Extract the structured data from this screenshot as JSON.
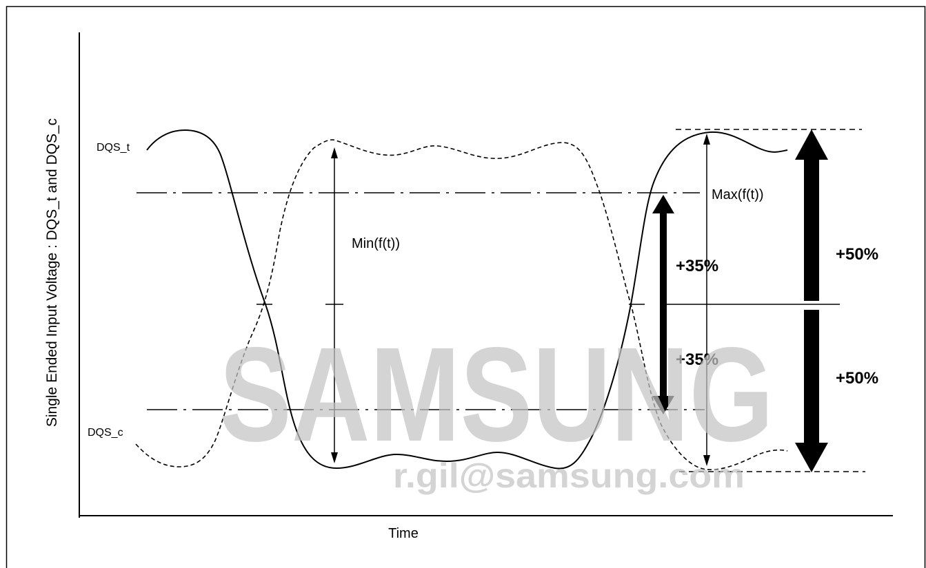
{
  "diagram": {
    "y_axis_label": "Single Ended Input Voltage : DQS_t and DQS_c",
    "x_axis_label": "Time",
    "signals": {
      "dqs_t": "DQS_t",
      "dqs_c": "DQS_c"
    },
    "annotations": {
      "min": "Min(f(t))",
      "max": "Max(f(t))",
      "pct35_upper": "+35%",
      "pct35_lower": "+35%",
      "pct50_upper": "+50%",
      "pct50_lower": "+50%"
    },
    "line_styles": {
      "dqs_t": "solid",
      "dqs_c": "dashed",
      "thresholds": "dash-dot"
    }
  },
  "watermark": {
    "brand": "SAMSUNG",
    "email": "r.gil@samsung.com"
  }
}
